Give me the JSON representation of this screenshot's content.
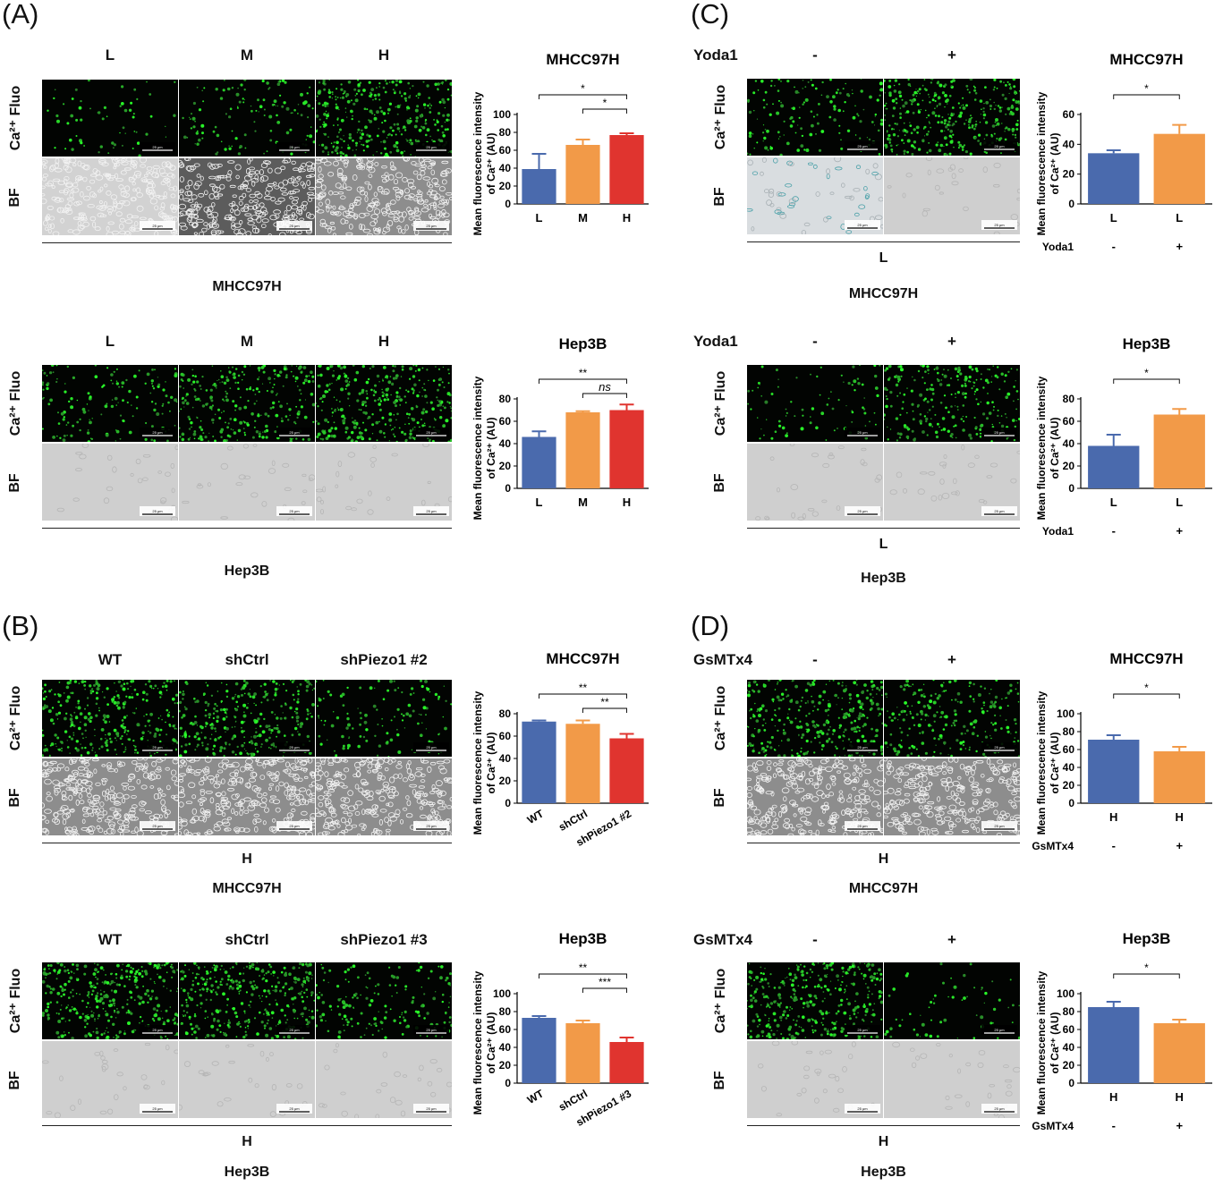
{
  "panels": [
    {
      "id": "A",
      "label": "(A)",
      "blocks": [
        {
          "top_labels": [
            "L",
            "M",
            "H"
          ],
          "row_labels": {
            "fluo": "Ca²⁺ Fluo",
            "bf": "BF"
          },
          "bottom_label": "",
          "cell_line": "MHCC97H",
          "fluo_density": [
            0.15,
            0.3,
            0.8
          ],
          "bf_style": [
            "light",
            "dark",
            "medium"
          ],
          "scale_text": "25 μm"
        },
        {
          "top_labels": [
            "L",
            "M",
            "H"
          ],
          "row_labels": {
            "fluo": "Ca²⁺ Fluo",
            "bf": "BF"
          },
          "bottom_label": "",
          "cell_line": "Hep3B",
          "fluo_density": [
            0.35,
            0.65,
            0.8
          ],
          "bf_style": [
            "pale",
            "pale",
            "pale"
          ],
          "scale_text": "25 μm"
        }
      ]
    },
    {
      "id": "B",
      "label": "(B)",
      "blocks": [
        {
          "top_labels": [
            "WT",
            "shCtrl",
            "shPiezo1 #2"
          ],
          "row_labels": {
            "fluo": "Ca²⁺ Fluo",
            "bf": "BF"
          },
          "bottom_label": "H",
          "cell_line": "MHCC97H",
          "fluo_density": [
            0.75,
            0.75,
            0.3
          ],
          "bf_style": [
            "medium",
            "medium",
            "medium"
          ],
          "scale_text": "25 μm"
        },
        {
          "top_labels": [
            "WT",
            "shCtrl",
            "shPiezo1 #3"
          ],
          "row_labels": {
            "fluo": "Ca²⁺ Fluo",
            "bf": "BF"
          },
          "bottom_label": "H",
          "cell_line": "Hep3B",
          "fluo_density": [
            0.85,
            0.85,
            0.4
          ],
          "bf_style": [
            "pale",
            "pale",
            "pale"
          ],
          "scale_text": "25 μm"
        }
      ]
    },
    {
      "id": "C",
      "label": "(C)",
      "blocks": [
        {
          "treatment": "Yoda1",
          "top_labels": [
            "-",
            "+"
          ],
          "row_labels": {
            "fluo": "Ca²⁺ Fluo",
            "bf": "BF"
          },
          "bottom_label": "L",
          "cell_line": "MHCC97H",
          "fluo_density": [
            0.35,
            0.85
          ],
          "bf_style": [
            "bluish",
            "pale"
          ],
          "scale_text": "25 μm"
        },
        {
          "treatment": "Yoda1",
          "top_labels": [
            "-",
            "+"
          ],
          "row_labels": {
            "fluo": "Ca²⁺ Fluo",
            "bf": "BF"
          },
          "bottom_label": "L",
          "cell_line": "Hep3B",
          "fluo_density": [
            0.2,
            0.6
          ],
          "bf_style": [
            "pale",
            "pale"
          ],
          "scale_text": "25 μm"
        }
      ]
    },
    {
      "id": "D",
      "label": "(D)",
      "blocks": [
        {
          "treatment": "GsMTx4",
          "top_labels": [
            "-",
            "+"
          ],
          "row_labels": {
            "fluo": "Ca²⁺ Fluo",
            "bf": "BF"
          },
          "bottom_label": "H",
          "cell_line": "MHCC97H",
          "fluo_density": [
            0.8,
            0.55
          ],
          "bf_style": [
            "medium",
            "medium"
          ],
          "scale_text": "25 μm"
        },
        {
          "treatment": "GsMTx4",
          "top_labels": [
            "-",
            "+"
          ],
          "row_labels": {
            "fluo": "Ca²⁺ Fluo",
            "bf": "BF"
          },
          "bottom_label": "H",
          "cell_line": "Hep3B",
          "fluo_density": [
            0.85,
            0.15
          ],
          "bf_style": [
            "pale",
            "pale"
          ],
          "scale_text": "25 μm"
        }
      ]
    }
  ],
  "colors": {
    "blue": "#4a6aad",
    "orange": "#f29a48",
    "red": "#e0342f",
    "green": "#3ddc3d"
  },
  "chart_data": [
    {
      "type": "bar",
      "panel": "A",
      "title": "MHCC97H",
      "ylabel": "Mean fluorescence intensity of Ca²⁺ (AU)",
      "categories": [
        "L",
        "M",
        "H"
      ],
      "values": [
        39,
        66,
        77
      ],
      "errors": [
        17,
        6,
        2
      ],
      "colors": [
        "blue",
        "orange",
        "red"
      ],
      "ylim": [
        0,
        100
      ],
      "yticks": [
        0,
        20,
        40,
        60,
        80,
        100
      ],
      "significance": [
        {
          "from": 0,
          "to": 2,
          "label": "*"
        },
        {
          "from": 1,
          "to": 2,
          "label": "*"
        }
      ],
      "xtick_rotate": false,
      "treatment_row": null
    },
    {
      "type": "bar",
      "panel": "A",
      "title": "Hep3B",
      "ylabel": "Mean fluorescence intensity of Ca²⁺ (AU)",
      "categories": [
        "L",
        "M",
        "H"
      ],
      "values": [
        46,
        68,
        70
      ],
      "errors": [
        5,
        1,
        5
      ],
      "colors": [
        "blue",
        "orange",
        "red"
      ],
      "ylim": [
        0,
        80
      ],
      "yticks": [
        0,
        20,
        40,
        60,
        80
      ],
      "significance": [
        {
          "from": 0,
          "to": 2,
          "label": "**"
        },
        {
          "from": 1,
          "to": 2,
          "label": "ns",
          "italic": true
        }
      ],
      "xtick_rotate": false,
      "treatment_row": null
    },
    {
      "type": "bar",
      "panel": "B",
      "title": "MHCC97H",
      "ylabel": "Mean fluorescence intensity of Ca²⁺ (AU)",
      "categories": [
        "WT",
        "shCtrl",
        "shPiezo1 #2"
      ],
      "values": [
        73,
        71,
        58
      ],
      "errors": [
        1,
        3,
        4
      ],
      "colors": [
        "blue",
        "orange",
        "red"
      ],
      "ylim": [
        0,
        80
      ],
      "yticks": [
        0,
        20,
        40,
        60,
        80
      ],
      "significance": [
        {
          "from": 0,
          "to": 2,
          "label": "**"
        },
        {
          "from": 1,
          "to": 2,
          "label": "**"
        }
      ],
      "xtick_rotate": true,
      "treatment_row": null
    },
    {
      "type": "bar",
      "panel": "B",
      "title": "Hep3B",
      "ylabel": "Mean fluorescence intensity of Ca²⁺ (AU)",
      "categories": [
        "WT",
        "shCtrl",
        "shPiezo1 #3"
      ],
      "values": [
        73,
        67,
        46
      ],
      "errors": [
        2,
        3,
        5
      ],
      "colors": [
        "blue",
        "orange",
        "red"
      ],
      "ylim": [
        0,
        100
      ],
      "yticks": [
        0,
        20,
        40,
        60,
        80,
        100
      ],
      "significance": [
        {
          "from": 0,
          "to": 2,
          "label": "**"
        },
        {
          "from": 1,
          "to": 2,
          "label": "***"
        }
      ],
      "xtick_rotate": true,
      "treatment_row": null
    },
    {
      "type": "bar",
      "panel": "C",
      "title": "MHCC97H",
      "ylabel": "Mean fluorescence intensity of Ca²⁺ (AU)",
      "categories": [
        "L",
        "L"
      ],
      "values": [
        34,
        47
      ],
      "errors": [
        2,
        6
      ],
      "colors": [
        "blue",
        "orange"
      ],
      "ylim": [
        0,
        60
      ],
      "yticks": [
        0,
        20,
        40,
        60
      ],
      "significance": [
        {
          "from": 0,
          "to": 1,
          "label": "*"
        }
      ],
      "xtick_rotate": false,
      "treatment_row": {
        "name": "Yoda1",
        "values": [
          "-",
          "+"
        ]
      }
    },
    {
      "type": "bar",
      "panel": "C",
      "title": "Hep3B",
      "ylabel": "Mean fluorescence intensity of Ca²⁺ (AU)",
      "categories": [
        "L",
        "L"
      ],
      "values": [
        38,
        66
      ],
      "errors": [
        10,
        5
      ],
      "colors": [
        "blue",
        "orange"
      ],
      "ylim": [
        0,
        80
      ],
      "yticks": [
        0,
        20,
        40,
        60,
        80
      ],
      "significance": [
        {
          "from": 0,
          "to": 1,
          "label": "*"
        }
      ],
      "xtick_rotate": false,
      "treatment_row": {
        "name": "Yoda1",
        "values": [
          "-",
          "+"
        ]
      }
    },
    {
      "type": "bar",
      "panel": "D",
      "title": "MHCC97H",
      "ylabel": "Mean fluorescence intensity of Ca²⁺ (AU)",
      "categories": [
        "H",
        "H"
      ],
      "values": [
        71,
        58
      ],
      "errors": [
        5,
        5
      ],
      "colors": [
        "blue",
        "orange"
      ],
      "ylim": [
        0,
        100
      ],
      "yticks": [
        0,
        20,
        40,
        60,
        80,
        100
      ],
      "significance": [
        {
          "from": 0,
          "to": 1,
          "label": "*"
        }
      ],
      "xtick_rotate": false,
      "treatment_row": {
        "name": "GsMTx4",
        "values": [
          "-",
          "+"
        ]
      }
    },
    {
      "type": "bar",
      "panel": "D",
      "title": "Hep3B",
      "ylabel": "Mean fluorescence intensity of Ca²⁺ (AU)",
      "categories": [
        "H",
        "H"
      ],
      "values": [
        85,
        67
      ],
      "errors": [
        6,
        4
      ],
      "colors": [
        "blue",
        "orange"
      ],
      "ylim": [
        0,
        100
      ],
      "yticks": [
        0,
        20,
        40,
        60,
        80,
        100
      ],
      "significance": [
        {
          "from": 0,
          "to": 1,
          "label": "*"
        }
      ],
      "xtick_rotate": false,
      "treatment_row": {
        "name": "GsMTx4",
        "values": [
          "-",
          "+"
        ]
      }
    }
  ]
}
